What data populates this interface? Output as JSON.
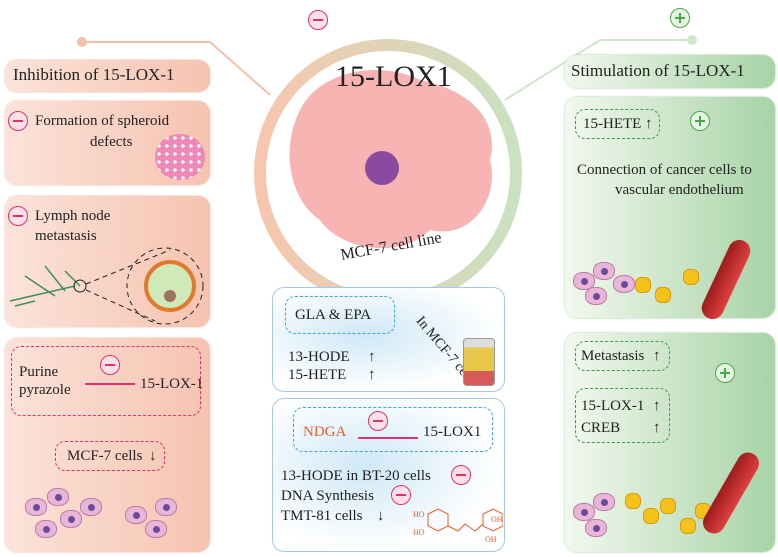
{
  "center": {
    "title": "15-LOX1",
    "subtitle": "MCF-7 cell line"
  },
  "left": {
    "header": "Inhibition of 15-LOX-1",
    "box1": {
      "text1": "Formation of spheroid",
      "text2": "defects"
    },
    "box2": {
      "text1": "Lymph node",
      "text2": "metastasis"
    },
    "box3": {
      "text1": "Purine",
      "text2": "pyrazole",
      "target": "15-LOX-1",
      "result": "MCF-7 cells",
      "result_arrow": "↓"
    }
  },
  "middle": {
    "box1": {
      "input": "GLA & EPA",
      "curve_label": "In MCF-7 cells",
      "out1": "13-HODE",
      "out2": "15-HETE",
      "arrow": "↑"
    },
    "box2": {
      "drug": "NDGA",
      "target": "15-LOX1",
      "out1": "13-HODE in BT-20 cells",
      "out2": "DNA Synthesis",
      "out3": "TMT-81 cells",
      "down": "↓",
      "chem_labels": [
        "HO",
        "HO",
        "OH",
        "OH"
      ]
    }
  },
  "right": {
    "header": "Stimulation of 15-LOX-1",
    "boxA": {
      "tag": "15-HETE",
      "arrow": "↑",
      "text1": "Connection of cancer cells to",
      "text2": "vascular endothelium"
    },
    "boxB": {
      "tag": "Metastasis",
      "arrow": "↑",
      "item1": "15-LOX-1",
      "item2": "CREB"
    }
  },
  "colors": {
    "inhibit": "#e0306d",
    "stimulate": "#4aa84a",
    "blue": "#3aa6e0",
    "ndga": "#f05a28"
  }
}
